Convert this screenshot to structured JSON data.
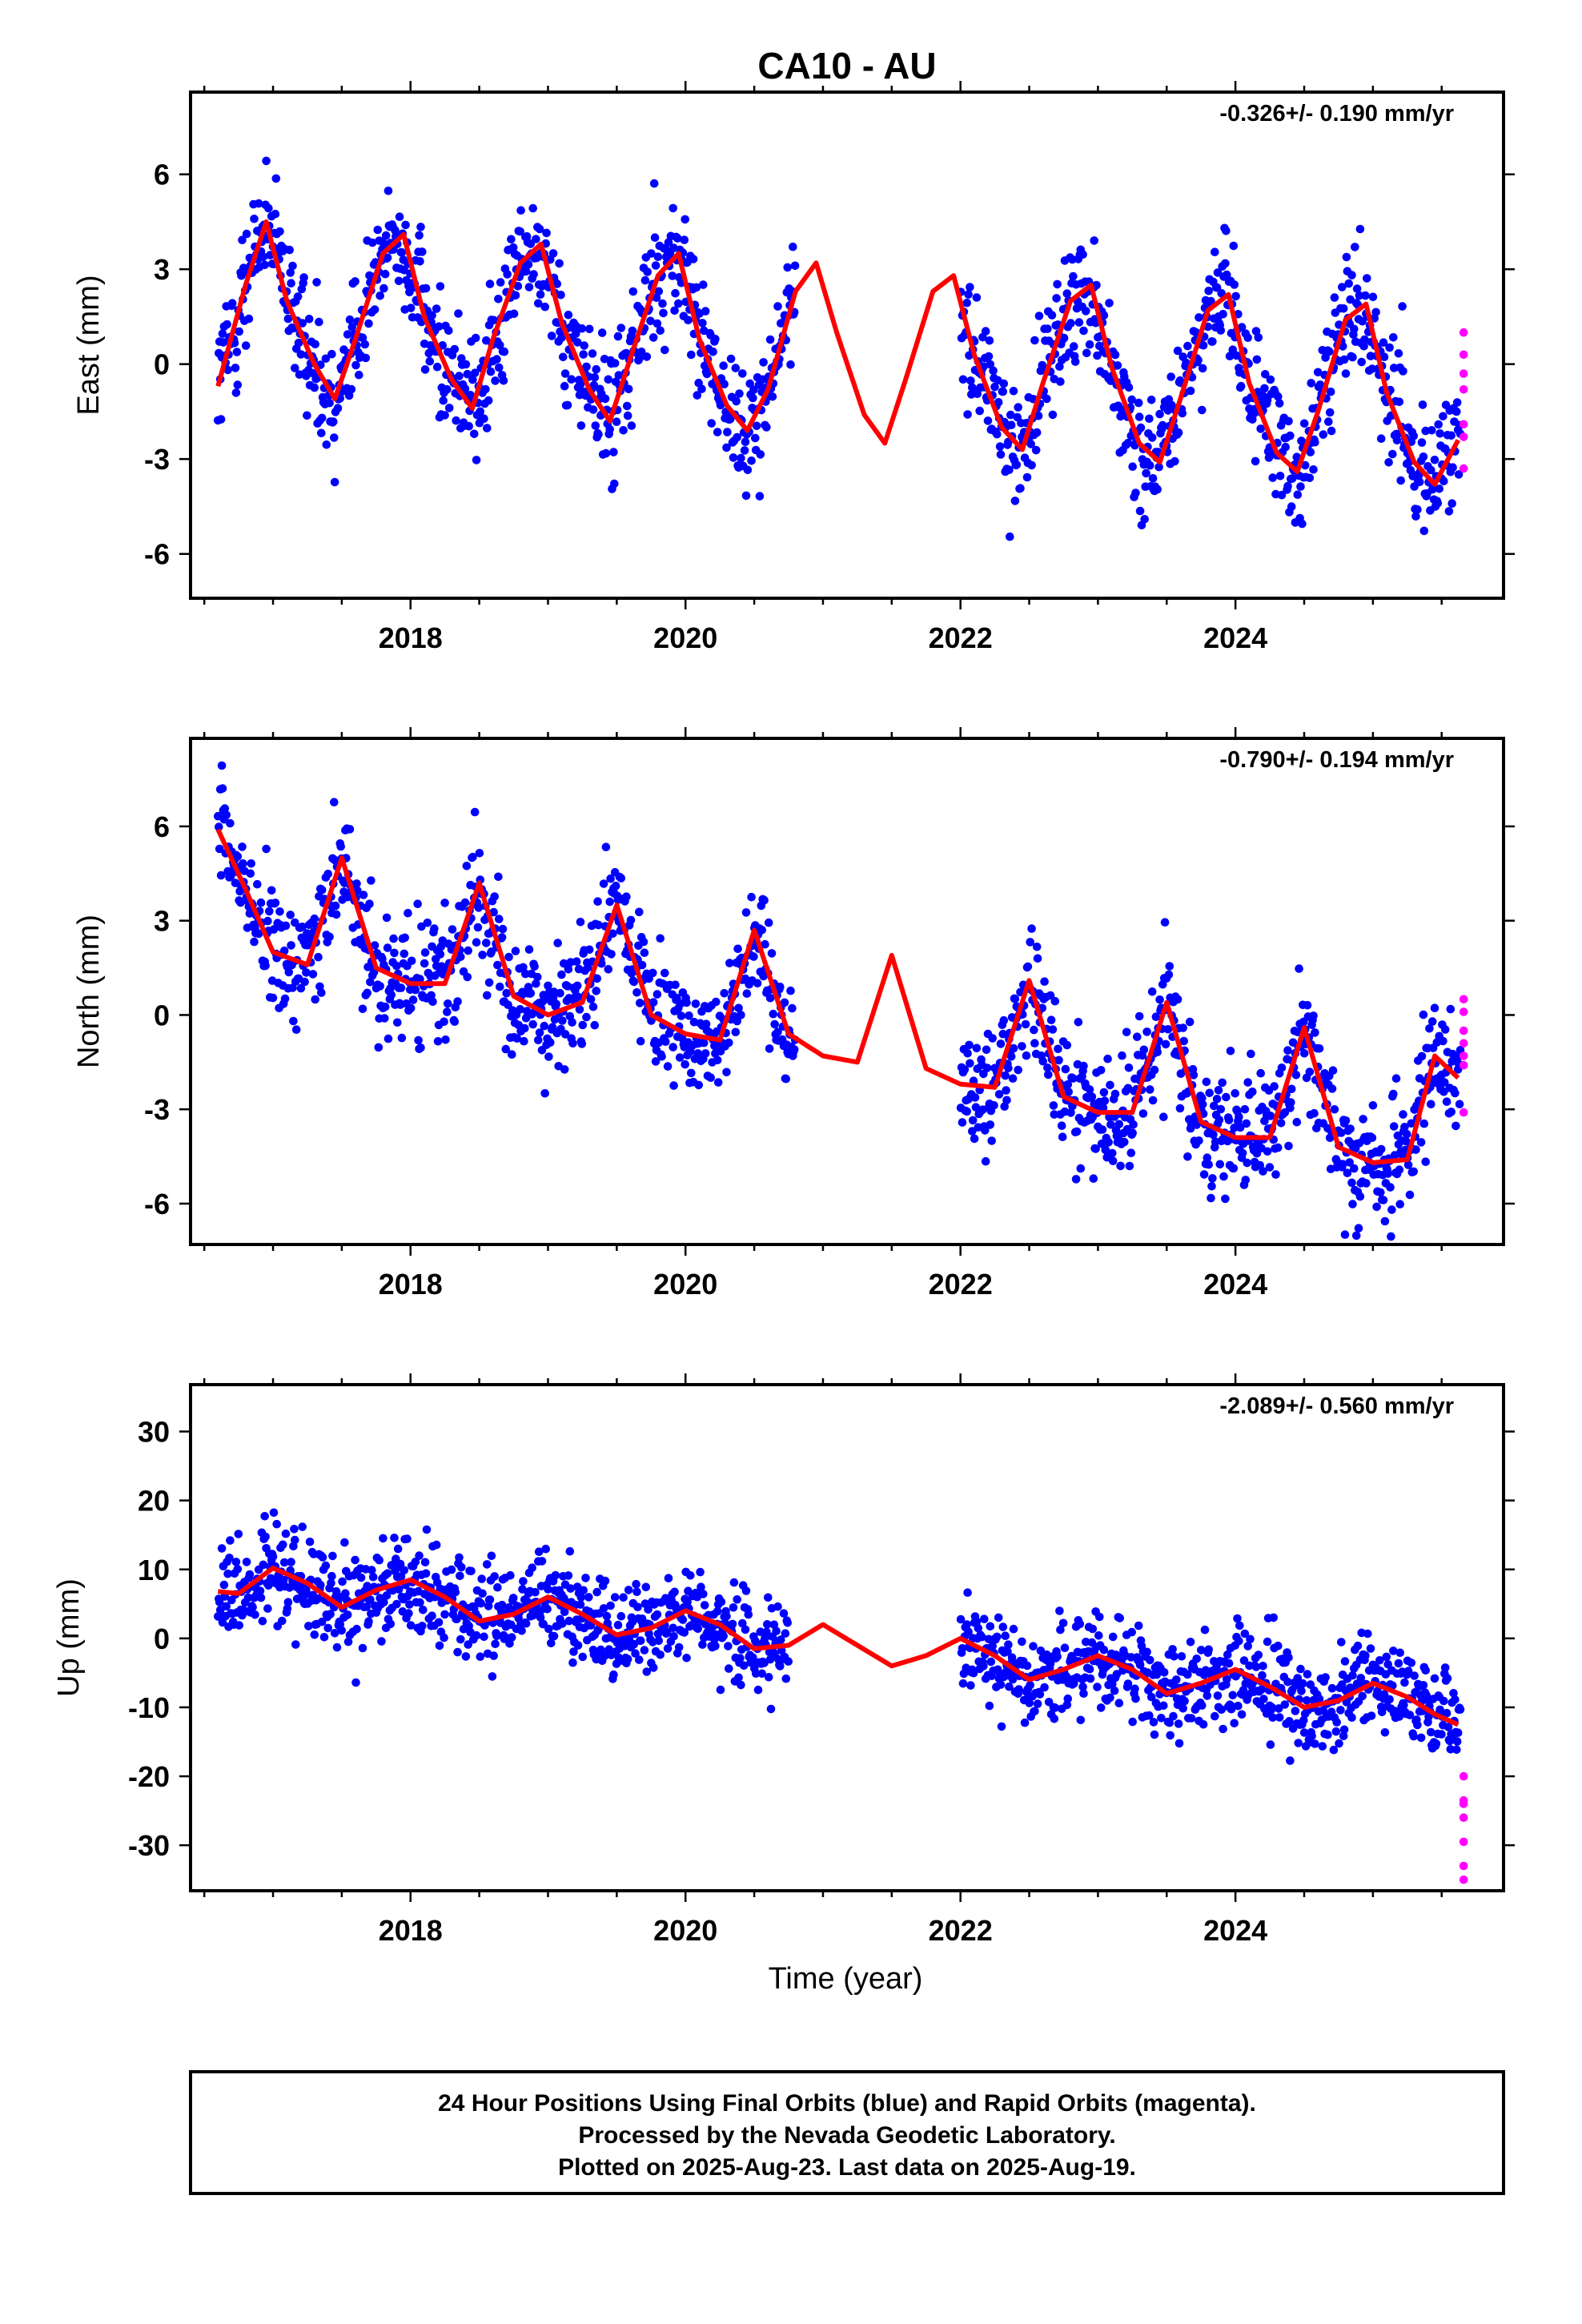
{
  "page": {
    "title": "CA10 - AU",
    "xlabel": "Time (year)",
    "footer": [
      "24 Hour Positions Using Final Orbits (blue) and Rapid Orbits (magenta).",
      "Processed by the Nevada Geodetic Laboratory.",
      "Plotted on 2025-Aug-23. Last data on 2025-Aug-19."
    ]
  },
  "colors": {
    "final_orbits": "#0000ff",
    "rapid_orbits": "#ff00ff",
    "model_fit": "#ff0000"
  },
  "chart_data": [
    {
      "type": "scatter",
      "component": "east",
      "ylabel": "East (mm)",
      "rate": "-0.326+/- 0.190 mm/yr",
      "xlim": [
        2016.4,
        2025.95
      ],
      "ylim": [
        -7.4,
        8.6
      ],
      "xticks": [
        2018,
        2020,
        2022,
        2024
      ],
      "yticks": [
        -6,
        -3,
        0,
        3,
        6
      ],
      "grid": false,
      "data_gap": [
        2020.8,
        2022.0
      ],
      "series": [
        {
          "role": "model",
          "x": [
            2016.6,
            2016.8,
            2016.95,
            2017.1,
            2017.3,
            2017.45,
            2017.6,
            2017.8,
            2017.95,
            2018.1,
            2018.3,
            2018.45,
            2018.6,
            2018.8,
            2018.95,
            2019.1,
            2019.3,
            2019.45,
            2019.6,
            2019.8,
            2019.95,
            2020.1,
            2020.3,
            2020.45,
            2020.6,
            2020.8,
            2020.95,
            2021.1,
            2021.3,
            2021.45,
            2021.6,
            2021.8,
            2021.95,
            2022.1,
            2022.3,
            2022.45,
            2022.6,
            2022.8,
            2022.95,
            2023.1,
            2023.3,
            2023.45,
            2023.6,
            2023.8,
            2023.95,
            2024.1,
            2024.3,
            2024.45,
            2024.6,
            2024.8,
            2024.95,
            2025.1,
            2025.3,
            2025.45,
            2025.62
          ],
          "y": [
            -0.7,
            2.5,
            4.5,
            2.0,
            0.0,
            -1.1,
            0.8,
            3.5,
            4.1,
            1.5,
            -0.5,
            -1.4,
            0.8,
            3.2,
            3.8,
            1.3,
            -0.8,
            -1.8,
            0.2,
            2.8,
            3.5,
            0.8,
            -1.3,
            -2.1,
            -0.8,
            2.3,
            3.2,
            1.0,
            -1.6,
            -2.5,
            -0.5,
            2.3,
            2.8,
            0.3,
            -2.0,
            -2.7,
            -0.6,
            2.0,
            2.5,
            -0.1,
            -2.5,
            -3.1,
            -1.1,
            1.7,
            2.2,
            -0.6,
            -2.8,
            -3.4,
            -1.5,
            1.4,
            1.9,
            -0.9,
            -3.1,
            -3.8,
            -2.4
          ]
        },
        {
          "role": "final_orbits",
          "name": "Final Orbits"
        },
        {
          "role": "rapid_orbits",
          "name": "Rapid Orbits",
          "x": [
            2025.66,
            2025.66,
            2025.66,
            2025.66,
            2025.66,
            2025.66,
            2025.66
          ],
          "y": [
            1.0,
            0.3,
            -0.3,
            -0.8,
            -1.9,
            -2.3,
            -3.3
          ]
        }
      ]
    },
    {
      "type": "scatter",
      "component": "north",
      "ylabel": "North (mm)",
      "rate": "-0.790+/- 0.194 mm/yr",
      "xlim": [
        2016.4,
        2025.95
      ],
      "ylim": [
        -7.3,
        8.8
      ],
      "xticks": [
        2018,
        2020,
        2022,
        2024
      ],
      "yticks": [
        -6,
        -3,
        0,
        3,
        6
      ],
      "grid": false,
      "data_gap": [
        2020.8,
        2022.0
      ],
      "series": [
        {
          "role": "model",
          "x": [
            2016.6,
            2016.8,
            2017.0,
            2017.25,
            2017.5,
            2017.75,
            2018.0,
            2018.25,
            2018.5,
            2018.75,
            2019.0,
            2019.25,
            2019.5,
            2019.75,
            2020.0,
            2020.25,
            2020.5,
            2020.75,
            2021.0,
            2021.25,
            2021.5,
            2021.75,
            2022.0,
            2022.25,
            2022.5,
            2022.75,
            2023.0,
            2023.25,
            2023.5,
            2023.75,
            2024.0,
            2024.25,
            2024.5,
            2024.75,
            2025.0,
            2025.25,
            2025.45,
            2025.62
          ],
          "y": [
            5.9,
            4.0,
            2.0,
            1.6,
            5.0,
            1.5,
            1.0,
            1.0,
            4.2,
            0.6,
            0.0,
            0.4,
            3.5,
            0.0,
            -0.6,
            -0.8,
            2.7,
            -0.6,
            -1.3,
            -1.5,
            1.9,
            -1.7,
            -2.2,
            -2.3,
            1.1,
            -2.6,
            -3.1,
            -3.1,
            0.4,
            -3.4,
            -3.9,
            -3.9,
            -0.4,
            -4.2,
            -4.7,
            -4.6,
            -1.3,
            -2.0
          ]
        },
        {
          "role": "final_orbits",
          "name": "Final Orbits"
        },
        {
          "role": "rapid_orbits",
          "name": "Rapid Orbits",
          "x": [
            2025.66,
            2025.66,
            2025.66,
            2025.66,
            2025.66,
            2025.66,
            2025.66
          ],
          "y": [
            0.5,
            0.1,
            -0.5,
            -0.9,
            -1.3,
            -1.6,
            -3.1
          ]
        }
      ]
    },
    {
      "type": "scatter",
      "component": "up",
      "ylabel": "Up (mm)",
      "rate": "-2.089+/- 0.560 mm/yr",
      "xlim": [
        2016.4,
        2025.95
      ],
      "ylim": [
        -36.6,
        36.8
      ],
      "xticks": [
        2018,
        2020,
        2022,
        2024
      ],
      "yticks": [
        -30,
        -20,
        -10,
        0,
        10,
        20,
        30
      ],
      "grid": false,
      "data_gap": [
        2020.75,
        2022.0
      ],
      "series": [
        {
          "role": "model",
          "x": [
            2016.6,
            2016.75,
            2017.0,
            2017.25,
            2017.5,
            2017.75,
            2018.0,
            2018.25,
            2018.5,
            2018.75,
            2019.0,
            2019.25,
            2019.5,
            2019.75,
            2020.0,
            2020.25,
            2020.5,
            2020.75,
            2021.0,
            2021.25,
            2021.5,
            2021.75,
            2022.0,
            2022.25,
            2022.5,
            2022.75,
            2023.0,
            2023.25,
            2023.5,
            2023.75,
            2024.0,
            2024.25,
            2024.5,
            2024.75,
            2025.0,
            2025.25,
            2025.45,
            2025.62
          ],
          "y": [
            6.8,
            6.5,
            10.2,
            8.0,
            4.5,
            7.0,
            8.5,
            6.0,
            2.5,
            3.5,
            6.0,
            3.5,
            0.5,
            1.5,
            4.0,
            2.0,
            -1.5,
            -1.0,
            2.0,
            -1.0,
            -4.0,
            -2.5,
            0.0,
            -2.5,
            -6.0,
            -4.5,
            -2.5,
            -4.5,
            -8.0,
            -6.5,
            -4.5,
            -7.0,
            -10.0,
            -9.0,
            -6.5,
            -8.5,
            -11.0,
            -12.5
          ]
        },
        {
          "role": "final_orbits",
          "name": "Final Orbits"
        },
        {
          "role": "rapid_orbits",
          "name": "Rapid Orbits",
          "x": [
            2025.66,
            2025.66,
            2025.66,
            2025.66,
            2025.66,
            2025.66,
            2025.66
          ],
          "y": [
            -20.0,
            -23.5,
            -24.0,
            -26.0,
            -29.5,
            -33.0,
            -35.0
          ]
        }
      ]
    }
  ]
}
